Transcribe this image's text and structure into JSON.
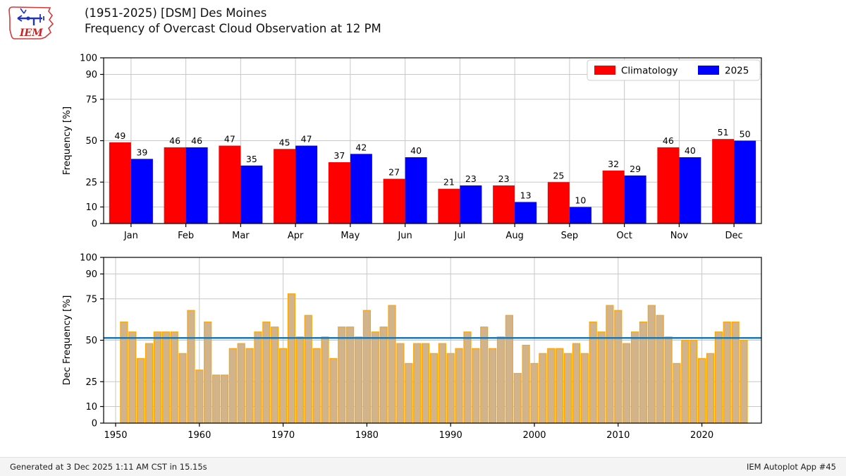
{
  "header": {
    "title_line1": "(1951-2025) [DSM] Des Moines",
    "title_line2": "Frequency of Overcast Cloud Observation at 12 PM",
    "logo_text": "IEM"
  },
  "footer": {
    "generated": "Generated at 3 Dec 2025 1:11 AM CST in 15.15s",
    "app": "IEM Autoplot App #45"
  },
  "colors": {
    "climatology_bar": "#ff0000",
    "year_bar": "#0000ff",
    "dec_bar_fill": "#d2b48c",
    "dec_bar_edge": "#ffa500",
    "avg_line": "#1f77b4",
    "grid": "#c8c8c8",
    "spine": "#000000"
  },
  "chart_data": [
    {
      "type": "bar",
      "title": "",
      "ylabel": "Frequency [%]",
      "ylim": [
        0,
        100
      ],
      "yticks": [
        0,
        10,
        25,
        50,
        75,
        90,
        100
      ],
      "grid": true,
      "legend_position": "top-right",
      "categories": [
        "Jan",
        "Feb",
        "Mar",
        "Apr",
        "May",
        "Jun",
        "Jul",
        "Aug",
        "Sep",
        "Oct",
        "Nov",
        "Dec"
      ],
      "series": [
        {
          "name": "Climatology",
          "values": [
            49,
            46,
            47,
            45,
            37,
            27,
            21,
            23,
            25,
            32,
            46,
            51
          ]
        },
        {
          "name": "2025",
          "values": [
            39,
            46,
            35,
            47,
            42,
            40,
            23,
            13,
            10,
            29,
            40,
            50
          ]
        }
      ],
      "bar_labels": true
    },
    {
      "type": "bar",
      "title": "",
      "ylabel": "Dec Frequency [%]",
      "ylim": [
        0,
        100
      ],
      "yticks": [
        0,
        10,
        25,
        50,
        75,
        90,
        100
      ],
      "xticks": [
        1950,
        1960,
        1970,
        1980,
        1990,
        2000,
        2010,
        2020
      ],
      "grid": true,
      "avg_line_value": 51.4,
      "years": [
        1951,
        1952,
        1953,
        1954,
        1955,
        1956,
        1957,
        1958,
        1959,
        1960,
        1961,
        1962,
        1963,
        1964,
        1965,
        1966,
        1967,
        1968,
        1969,
        1970,
        1971,
        1972,
        1973,
        1974,
        1975,
        1976,
        1977,
        1978,
        1979,
        1980,
        1981,
        1982,
        1983,
        1984,
        1985,
        1986,
        1987,
        1988,
        1989,
        1990,
        1991,
        1992,
        1993,
        1994,
        1995,
        1996,
        1997,
        1998,
        1999,
        2000,
        2001,
        2002,
        2003,
        2004,
        2005,
        2006,
        2007,
        2008,
        2009,
        2010,
        2011,
        2012,
        2013,
        2014,
        2015,
        2016,
        2017,
        2018,
        2019,
        2020,
        2021,
        2022,
        2023,
        2024,
        2025
      ],
      "values": [
        61,
        55,
        39,
        48,
        55,
        55,
        55,
        42,
        68,
        32,
        61,
        29,
        29,
        45,
        48,
        45,
        55,
        61,
        58,
        45,
        78,
        52,
        65,
        45,
        52,
        39,
        58,
        58,
        52,
        68,
        55,
        58,
        71,
        48,
        36,
        48,
        48,
        42,
        48,
        42,
        45,
        55,
        45,
        58,
        45,
        52,
        65,
        30,
        47,
        36,
        42,
        45,
        45,
        42,
        48,
        42,
        61,
        55,
        71,
        68,
        48,
        55,
        61,
        71,
        65,
        52,
        36,
        50,
        50,
        39,
        42,
        55,
        61,
        61,
        50
      ]
    }
  ]
}
